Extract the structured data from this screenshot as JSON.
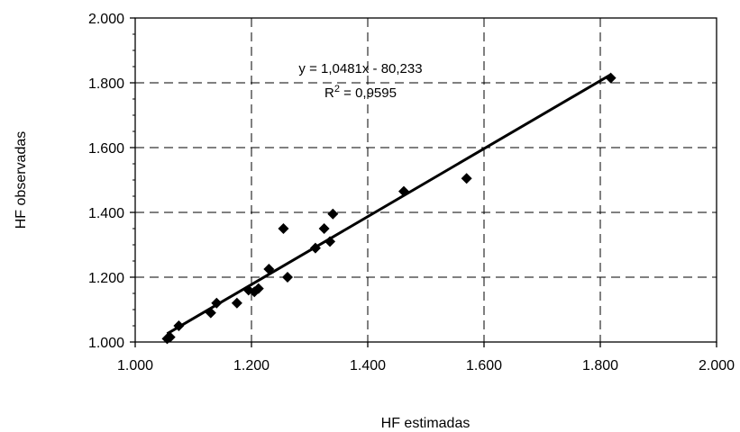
{
  "chart_data": {
    "type": "scatter",
    "title": "",
    "xlabel": "HF  estimadas",
    "ylabel": "HF  observadas",
    "xlim": [
      1000,
      2000
    ],
    "ylim": [
      1000,
      2000
    ],
    "x_ticks": [
      "1.000",
      "1.200",
      "1.400",
      "1.600",
      "1.800",
      "2.000"
    ],
    "y_ticks": [
      "1.000",
      "1.200",
      "1.400",
      "1.600",
      "1.800",
      "2.000"
    ],
    "grid": true,
    "marker": "diamond",
    "colors": {
      "points": "#000000",
      "trendline": "#000000",
      "grid": "#000000"
    },
    "points": [
      {
        "x": 1055,
        "y": 1010
      },
      {
        "x": 1060,
        "y": 1015
      },
      {
        "x": 1075,
        "y": 1050
      },
      {
        "x": 1130,
        "y": 1090
      },
      {
        "x": 1140,
        "y": 1120
      },
      {
        "x": 1175,
        "y": 1120
      },
      {
        "x": 1195,
        "y": 1160
      },
      {
        "x": 1205,
        "y": 1155
      },
      {
        "x": 1212,
        "y": 1165
      },
      {
        "x": 1230,
        "y": 1225
      },
      {
        "x": 1255,
        "y": 1350
      },
      {
        "x": 1262,
        "y": 1200
      },
      {
        "x": 1310,
        "y": 1290
      },
      {
        "x": 1325,
        "y": 1350
      },
      {
        "x": 1335,
        "y": 1310
      },
      {
        "x": 1340,
        "y": 1395
      },
      {
        "x": 1462,
        "y": 1465
      },
      {
        "x": 1570,
        "y": 1505
      },
      {
        "x": 1818,
        "y": 1815
      }
    ],
    "trendline": {
      "slope": 1.0481,
      "intercept": -80.233,
      "x_range": [
        1055,
        1818
      ],
      "equation": "y = 1,0481x - 80,233",
      "r2_prefix": "R",
      "r2_sup": "2",
      "r2_value": " = 0,9595"
    }
  }
}
